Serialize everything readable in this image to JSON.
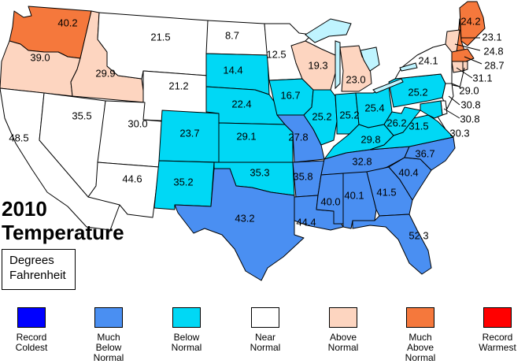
{
  "map": {
    "title_year": "2010",
    "title_main": "Temperature",
    "units": "Degrees\nFahrenheit"
  },
  "colors": {
    "record_coldest": "#0000ff",
    "much_below": "#4a8ff2",
    "below": "#00d8f5",
    "near": "#ffffff",
    "above": "#fdd5c0",
    "much_above": "#f5783c",
    "record_warmest": "#ff0000",
    "lake": "#bff4ff"
  },
  "legend": [
    {
      "label": "Record\nColdest",
      "category": "record_coldest"
    },
    {
      "label": "Much\nBelow\nNormal",
      "category": "much_below"
    },
    {
      "label": "Below\nNormal",
      "category": "below"
    },
    {
      "label": "Near\nNormal",
      "category": "near"
    },
    {
      "label": "Above\nNormal",
      "category": "above"
    },
    {
      "label": "Much\nAbove\nNormal",
      "category": "much_above"
    },
    {
      "label": "Record\nWarmest",
      "category": "record_warmest"
    }
  ],
  "states": [
    {
      "id": "WA",
      "value": "40.2",
      "category": "much_above"
    },
    {
      "id": "OR",
      "value": "39.0",
      "category": "above"
    },
    {
      "id": "CA",
      "value": "48.5",
      "category": "near"
    },
    {
      "id": "ID",
      "value": "29.9",
      "category": "above"
    },
    {
      "id": "NV",
      "value": "35.5",
      "category": "near"
    },
    {
      "id": "MT",
      "value": "21.5",
      "category": "near"
    },
    {
      "id": "WY",
      "value": "21.2",
      "category": "near"
    },
    {
      "id": "UT",
      "value": "30.0",
      "category": "near"
    },
    {
      "id": "AZ",
      "value": "44.6",
      "category": "near"
    },
    {
      "id": "CO",
      "value": "23.7",
      "category": "below"
    },
    {
      "id": "NM",
      "value": "35.2",
      "category": "below"
    },
    {
      "id": "ND",
      "value": "8.7",
      "category": "near"
    },
    {
      "id": "SD",
      "value": "14.4",
      "category": "below"
    },
    {
      "id": "NE",
      "value": "22.4",
      "category": "below"
    },
    {
      "id": "KS",
      "value": "29.1",
      "category": "below"
    },
    {
      "id": "OK",
      "value": "35.3",
      "category": "below"
    },
    {
      "id": "TX",
      "value": "43.2",
      "category": "much_below"
    },
    {
      "id": "MN",
      "value": "12.5",
      "category": "near"
    },
    {
      "id": "IA",
      "value": "16.7",
      "category": "below"
    },
    {
      "id": "MO",
      "value": "27.8",
      "category": "much_below"
    },
    {
      "id": "AR",
      "value": "35.8",
      "category": "much_below"
    },
    {
      "id": "LA",
      "value": "44.4",
      "category": "much_below"
    },
    {
      "id": "WI",
      "value": "19.3",
      "category": "above"
    },
    {
      "id": "IL",
      "value": "25.2",
      "category": "below"
    },
    {
      "id": "MI",
      "value": "23.0",
      "category": "above"
    },
    {
      "id": "IN",
      "value": "25.2",
      "category": "below"
    },
    {
      "id": "OH",
      "value": "25.4",
      "category": "below"
    },
    {
      "id": "KY",
      "value": "29.8",
      "category": "below"
    },
    {
      "id": "TN",
      "value": "32.8",
      "category": "much_below"
    },
    {
      "id": "MS",
      "value": "40.0",
      "category": "much_below"
    },
    {
      "id": "AL",
      "value": "40.1",
      "category": "much_below"
    },
    {
      "id": "GA",
      "value": "41.5",
      "category": "much_below"
    },
    {
      "id": "FL",
      "value": "52.3",
      "category": "much_below"
    },
    {
      "id": "SC",
      "value": "40.4",
      "category": "much_below"
    },
    {
      "id": "NC",
      "value": "36.7",
      "category": "much_below"
    },
    {
      "id": "VA",
      "value": "31.5",
      "category": "below"
    },
    {
      "id": "WV",
      "value": "26.2",
      "category": "below"
    },
    {
      "id": "PA",
      "value": "25.2",
      "category": "below"
    },
    {
      "id": "NY",
      "value": "24.1",
      "category": "near"
    },
    {
      "id": "ME",
      "value": "24.2",
      "category": "much_above"
    },
    {
      "id": "NH",
      "value": "23.1",
      "category": "much_above"
    },
    {
      "id": "VT",
      "value": "24.8",
      "category": "above"
    },
    {
      "id": "MA",
      "value": "28.7",
      "category": "much_above"
    },
    {
      "id": "CT",
      "value": "31.1",
      "category": "above"
    },
    {
      "id": "RI",
      "value": "29.0",
      "category": "above"
    },
    {
      "id": "NJ",
      "value": "30.8",
      "category": "near"
    },
    {
      "id": "DE",
      "value": "30.8",
      "category": "near"
    },
    {
      "id": "MD",
      "value": "30.3",
      "category": "below"
    }
  ]
}
